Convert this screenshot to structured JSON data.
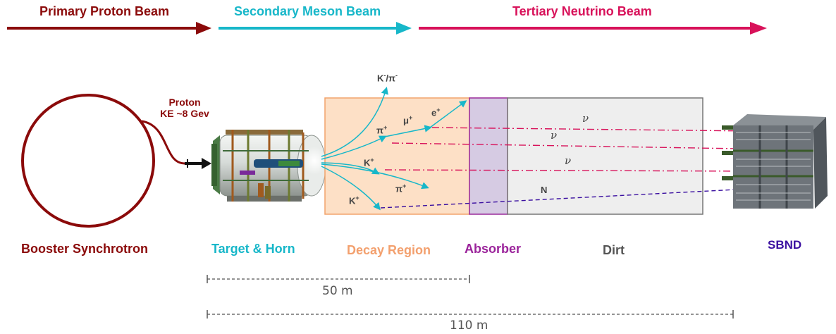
{
  "beams": {
    "primary": "Primary Proton Beam",
    "secondary": "Secondary Meson Beam",
    "tertiary": "Tertiary Neutrino Beam"
  },
  "proton": {
    "line1": "Proton",
    "line2": "KE ~8 Gev"
  },
  "regions": {
    "booster": "Booster Synchrotron",
    "target": "Target & Horn",
    "decay": "Decay Region",
    "absorber": "Absorber",
    "dirt": "Dirt",
    "detector": "SBND"
  },
  "particles": {
    "kpi_top": "K",
    "kpi_top_sup": "-",
    "kpi_top_mid": "/π",
    "kpi_top_sup2": "-",
    "pi_plus": "π",
    "mu_plus": "μ",
    "e_plus": "e",
    "k_plus": "K",
    "pi_plus_low": "π",
    "k_plus_low": "K",
    "plus": "+",
    "nu": "ν",
    "n": "N"
  },
  "distances": {
    "short": "50 m",
    "long": "110 m"
  },
  "colors": {
    "primary": "#8b0a0a",
    "secondary": "#17b7c9",
    "tertiary": "#d8125a",
    "decay_fill": "#fde0c6",
    "decay_stroke": "#f2a36b",
    "absorber_fill": "#d6cbe3",
    "absorber_stroke": "#9a2a9a",
    "dirt_fill": "#eeeeee",
    "dirt_stroke": "#777777",
    "detector": "#3a0fa0",
    "region_decay": "#f3a06e",
    "region_absorber": "#9b249b",
    "region_dirt": "#555555"
  }
}
